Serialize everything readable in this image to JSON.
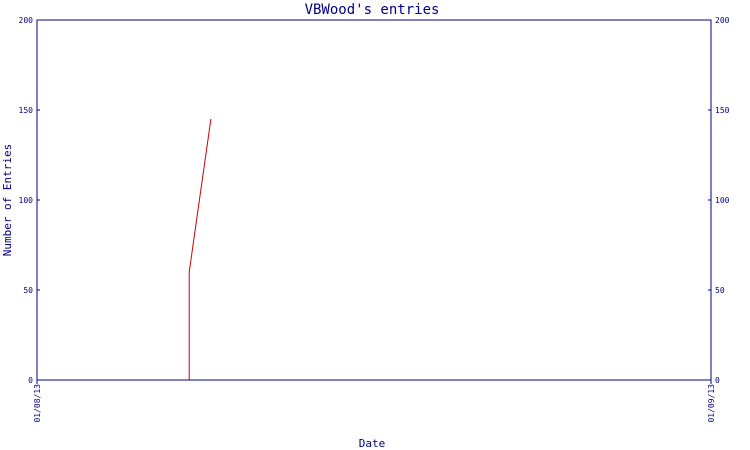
{
  "chart_data": {
    "type": "line",
    "title": "VBWood's entries",
    "xlabel": "Date",
    "ylabel": "Number of Entries",
    "ylim": [
      0,
      200
    ],
    "yticks": [
      0,
      50,
      100,
      150,
      200
    ],
    "xlim": [
      "2013-08-01",
      "2013-09-01"
    ],
    "xtick_labels": [
      "01/08/13",
      "01/09/13"
    ],
    "secondary_y_axis": true,
    "grid": false,
    "legend": "none",
    "series": [
      {
        "color": "#cc0000",
        "points": [
          {
            "x": "2013-08-08",
            "y": 0
          },
          {
            "x": "2013-08-08",
            "y": 60
          },
          {
            "x": "2013-08-09",
            "y": 145
          }
        ]
      }
    ]
  }
}
